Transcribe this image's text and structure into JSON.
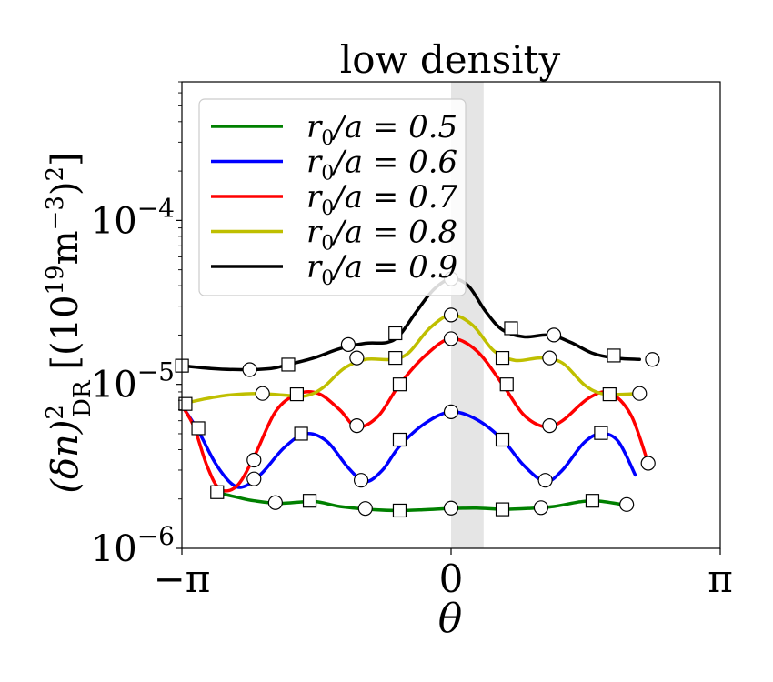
{
  "chart_data": {
    "type": "line",
    "title": "low density",
    "xlabel": "θ",
    "ylabel": {
      "base": "(δn)",
      "sup": "2",
      "sub": "DR",
      "units_open": "[(10",
      "units_exp": "19",
      "units_mid": "m",
      "units_exp2": "−3",
      "units_close": ")",
      "units_sq": "2",
      "units_end": "]"
    },
    "x_range": [
      -3.14159,
      3.14159
    ],
    "y_range": [
      1e-06,
      0.0007
    ],
    "y_scale": "log",
    "x_ticks": [
      {
        "value": -3.14159,
        "label": "−π"
      },
      {
        "value": 0,
        "label": "0"
      },
      {
        "value": 3.14159,
        "label": "π"
      }
    ],
    "y_ticks": [
      {
        "value": 1e-06,
        "base": "10",
        "exp": "−6"
      },
      {
        "value": 1e-05,
        "base": "10",
        "exp": "−5"
      },
      {
        "value": 0.0001,
        "base": "10",
        "exp": "−4"
      }
    ],
    "shaded_band": {
      "x_start": 0.0,
      "x_end": 0.38,
      "color": "#e5e5e5"
    },
    "legend": {
      "position": "upper left"
    },
    "series": [
      {
        "name": "r0/a = 0.5",
        "label": {
          "lhs": "r",
          "sub": "0",
          "rest": "/a = 0.5"
        },
        "color": "#008000",
        "curve": [
          [
            -2.75,
            2.2e-06
          ],
          [
            -2.5,
            2.05e-06
          ],
          [
            -2.3,
            1.95e-06
          ],
          [
            -2.0,
            1.88e-06
          ],
          [
            -1.6,
            1.93e-06
          ],
          [
            -1.3,
            1.8e-06
          ],
          [
            -0.9,
            1.72e-06
          ],
          [
            -0.6,
            1.7e-06
          ],
          [
            -0.3,
            1.72e-06
          ],
          [
            0.0,
            1.75e-06
          ],
          [
            0.3,
            1.76e-06
          ],
          [
            0.6,
            1.73e-06
          ],
          [
            0.9,
            1.75e-06
          ],
          [
            1.2,
            1.8e-06
          ],
          [
            1.5,
            1.92e-06
          ],
          [
            1.7,
            1.95e-06
          ],
          [
            2.0,
            1.85e-06
          ]
        ],
        "markers": [
          {
            "x": -2.73,
            "y": 2.2e-06,
            "shape": "square"
          },
          {
            "x": -2.05,
            "y": 1.9e-06,
            "shape": "circle"
          },
          {
            "x": -1.65,
            "y": 1.95e-06,
            "shape": "square"
          },
          {
            "x": -1.0,
            "y": 1.75e-06,
            "shape": "circle"
          },
          {
            "x": -0.6,
            "y": 1.7e-06,
            "shape": "square"
          },
          {
            "x": 0.0,
            "y": 1.76e-06,
            "shape": "circle"
          },
          {
            "x": 0.6,
            "y": 1.73e-06,
            "shape": "square"
          },
          {
            "x": 1.05,
            "y": 1.77e-06,
            "shape": "circle"
          },
          {
            "x": 1.65,
            "y": 1.95e-06,
            "shape": "square"
          },
          {
            "x": 2.05,
            "y": 1.85e-06,
            "shape": "circle"
          }
        ]
      },
      {
        "name": "r0/a = 0.6",
        "label": {
          "lhs": "r",
          "sub": "0",
          "rest": "/a = 0.6"
        },
        "color": "#0000ff",
        "curve": [
          [
            -3.14,
            7.4e-06
          ],
          [
            -2.95,
            5.2e-06
          ],
          [
            -2.75,
            3.3e-06
          ],
          [
            -2.55,
            2.45e-06
          ],
          [
            -2.4,
            2.4e-06
          ],
          [
            -2.2,
            2.9e-06
          ],
          [
            -1.95,
            4.1e-06
          ],
          [
            -1.7,
            5e-06
          ],
          [
            -1.45,
            4.5e-06
          ],
          [
            -1.2,
            3.1e-06
          ],
          [
            -1.0,
            2.55e-06
          ],
          [
            -0.8,
            3e-06
          ],
          [
            -0.6,
            4.2e-06
          ],
          [
            -0.3,
            5.8e-06
          ],
          [
            0.0,
            6.8e-06
          ],
          [
            0.3,
            6.1e-06
          ],
          [
            0.6,
            4.6e-06
          ],
          [
            0.85,
            3.2e-06
          ],
          [
            1.1,
            2.55e-06
          ],
          [
            1.3,
            3e-06
          ],
          [
            1.55,
            4.4e-06
          ],
          [
            1.75,
            5e-06
          ],
          [
            1.95,
            4.5e-06
          ],
          [
            2.15,
            2.8e-06
          ]
        ],
        "markers": [
          {
            "x": -2.3,
            "y": 2.65e-06,
            "shape": "circle"
          },
          {
            "x": -1.75,
            "y": 5e-06,
            "shape": "square"
          },
          {
            "x": -1.05,
            "y": 2.6e-06,
            "shape": "circle"
          },
          {
            "x": -0.6,
            "y": 4.6e-06,
            "shape": "square"
          },
          {
            "x": 0.0,
            "y": 6.8e-06,
            "shape": "circle"
          },
          {
            "x": 0.6,
            "y": 4.6e-06,
            "shape": "square"
          },
          {
            "x": 1.1,
            "y": 2.6e-06,
            "shape": "circle"
          },
          {
            "x": 1.75,
            "y": 5.05e-06,
            "shape": "square"
          }
        ]
      },
      {
        "name": "r0/a = 0.7",
        "label": {
          "lhs": "r",
          "sub": "0",
          "rest": "/a = 0.7"
        },
        "color": "#ff0000",
        "curve": [
          [
            -3.14,
            7.4e-06
          ],
          [
            -3.0,
            5.5e-06
          ],
          [
            -2.85,
            3.2e-06
          ],
          [
            -2.7,
            2.3e-06
          ],
          [
            -2.5,
            2.4e-06
          ],
          [
            -2.3,
            3.6e-06
          ],
          [
            -2.05,
            6.8e-06
          ],
          [
            -1.8,
            8.7e-06
          ],
          [
            -1.55,
            8.8e-06
          ],
          [
            -1.3,
            7e-06
          ],
          [
            -1.1,
            5.5e-06
          ],
          [
            -0.85,
            6.4e-06
          ],
          [
            -0.6,
            1e-05
          ],
          [
            -0.3,
            1.5e-05
          ],
          [
            0.0,
            1.9e-05
          ],
          [
            0.3,
            1.6e-05
          ],
          [
            0.6,
            1e-05
          ],
          [
            0.85,
            6.5e-06
          ],
          [
            1.1,
            5.5e-06
          ],
          [
            1.3,
            6e-06
          ],
          [
            1.6,
            8.2e-06
          ],
          [
            1.85,
            8.9e-06
          ],
          [
            2.1,
            6.5e-06
          ],
          [
            2.3,
            3.3e-06
          ]
        ],
        "markers": [
          {
            "x": -2.95,
            "y": 5.4e-06,
            "shape": "square"
          },
          {
            "x": -2.3,
            "y": 3.45e-06,
            "shape": "circle"
          },
          {
            "x": -1.1,
            "y": 5.6e-06,
            "shape": "circle"
          },
          {
            "x": -0.6,
            "y": 1e-05,
            "shape": "square"
          },
          {
            "x": 0.0,
            "y": 1.9e-05,
            "shape": "circle"
          },
          {
            "x": 0.65,
            "y": 1e-05,
            "shape": "square"
          },
          {
            "x": 1.15,
            "y": 5.6e-06,
            "shape": "circle"
          },
          {
            "x": 2.3,
            "y": 3.3e-06,
            "shape": "circle"
          }
        ]
      },
      {
        "name": "r0/a = 0.8",
        "label": {
          "lhs": "r",
          "sub": "0",
          "rest": "/a = 0.8"
        },
        "color": "#bfbf00",
        "curve": [
          [
            -3.14,
            7.6e-06
          ],
          [
            -2.9,
            8.1e-06
          ],
          [
            -2.6,
            8.6e-06
          ],
          [
            -2.25,
            8.8e-06
          ],
          [
            -1.95,
            8.6e-06
          ],
          [
            -1.7,
            8.5e-06
          ],
          [
            -1.5,
            9.5e-06
          ],
          [
            -1.25,
            1.25e-05
          ],
          [
            -1.0,
            1.42e-05
          ],
          [
            -0.7,
            1.42e-05
          ],
          [
            -0.5,
            1.55e-05
          ],
          [
            -0.25,
            2.2e-05
          ],
          [
            0.0,
            2.65e-05
          ],
          [
            0.25,
            2.3e-05
          ],
          [
            0.5,
            1.6e-05
          ],
          [
            0.75,
            1.4e-05
          ],
          [
            1.05,
            1.45e-05
          ],
          [
            1.3,
            1.35e-05
          ],
          [
            1.55,
            1e-05
          ],
          [
            1.75,
            8.8e-06
          ],
          [
            2.0,
            8.7e-06
          ],
          [
            2.2,
            8.8e-06
          ]
        ],
        "markers": [
          {
            "x": -3.1,
            "y": 7.6e-06,
            "shape": "square"
          },
          {
            "x": -2.2,
            "y": 8.8e-06,
            "shape": "circle"
          },
          {
            "x": -1.8,
            "y": 8.7e-06,
            "shape": "square"
          },
          {
            "x": -1.1,
            "y": 1.45e-05,
            "shape": "circle"
          },
          {
            "x": -0.65,
            "y": 1.45e-05,
            "shape": "square"
          },
          {
            "x": 0.0,
            "y": 2.65e-05,
            "shape": "circle"
          },
          {
            "x": 0.6,
            "y": 1.45e-05,
            "shape": "square"
          },
          {
            "x": 1.15,
            "y": 1.45e-05,
            "shape": "circle"
          },
          {
            "x": 1.85,
            "y": 8.7e-06,
            "shape": "square"
          },
          {
            "x": 2.2,
            "y": 8.8e-06,
            "shape": "circle"
          }
        ]
      },
      {
        "name": "r0/a = 0.9",
        "label": {
          "lhs": "r",
          "sub": "0",
          "rest": "/a = 0.9"
        },
        "color": "#000000",
        "curve": [
          [
            -3.14,
            1.3e-05
          ],
          [
            -2.8,
            1.25e-05
          ],
          [
            -2.45,
            1.23e-05
          ],
          [
            -2.1,
            1.25e-05
          ],
          [
            -1.9,
            1.32e-05
          ],
          [
            -1.6,
            1.45e-05
          ],
          [
            -1.3,
            1.65e-05
          ],
          [
            -1.0,
            1.78e-05
          ],
          [
            -0.75,
            1.8e-05
          ],
          [
            -0.6,
            2e-05
          ],
          [
            -0.4,
            2.8e-05
          ],
          [
            -0.2,
            3.8e-05
          ],
          [
            0.0,
            4.4e-05
          ],
          [
            0.2,
            4e-05
          ],
          [
            0.4,
            2.8e-05
          ],
          [
            0.6,
            2.15e-05
          ],
          [
            0.85,
            1.95e-05
          ],
          [
            1.15,
            2e-05
          ],
          [
            1.4,
            1.8e-05
          ],
          [
            1.65,
            1.55e-05
          ],
          [
            1.9,
            1.45e-05
          ],
          [
            2.2,
            1.42e-05
          ]
        ],
        "markers": [
          {
            "x": -3.14,
            "y": 1.3e-05,
            "shape": "square"
          },
          {
            "x": -2.35,
            "y": 1.23e-05,
            "shape": "circle"
          },
          {
            "x": -1.9,
            "y": 1.32e-05,
            "shape": "square"
          },
          {
            "x": -1.2,
            "y": 1.75e-05,
            "shape": "circle"
          },
          {
            "x": -0.65,
            "y": 2.05e-05,
            "shape": "square"
          },
          {
            "x": 0.0,
            "y": 4.4e-05,
            "shape": "circle"
          },
          {
            "x": 0.7,
            "y": 2.2e-05,
            "shape": "square"
          },
          {
            "x": 1.2,
            "y": 2e-05,
            "shape": "circle"
          },
          {
            "x": 1.9,
            "y": 1.5e-05,
            "shape": "square"
          },
          {
            "x": 2.35,
            "y": 1.42e-05,
            "shape": "circle"
          }
        ]
      }
    ]
  }
}
